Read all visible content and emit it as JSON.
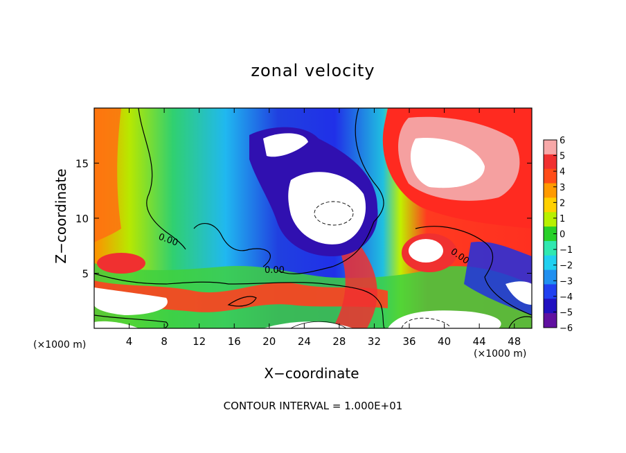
{
  "chart_data": {
    "type": "heatmap",
    "title": "zonal velocity",
    "xlabel": "X−coordinate",
    "ylabel": "Z−coordinate",
    "x_unit_label": "(×1000 m)",
    "footer": "CONTOUR INTERVAL = 1.000E+01",
    "xlim": [
      0,
      50
    ],
    "ylim": [
      0,
      20
    ],
    "x_ticks": [
      4,
      8,
      12,
      16,
      20,
      24,
      28,
      32,
      36,
      40,
      44,
      48
    ],
    "y_ticks": [
      5,
      10,
      15
    ],
    "colorbar": {
      "min": -6,
      "max": 6,
      "ticks": [
        6,
        5,
        4,
        3,
        2,
        1,
        0,
        -1,
        -2,
        -3,
        -4,
        -5,
        -6
      ],
      "colors": [
        "#f7a8a8",
        "#f03030",
        "#ff4c18",
        "#ff9a00",
        "#ffd000",
        "#b8f000",
        "#28d028",
        "#30e8b0",
        "#20d0f0",
        "#2090f0",
        "#2040f0",
        "#2010c0",
        "#6010a0"
      ]
    },
    "contour_labels": [
      "0.00",
      "0.00",
      "0.00"
    ]
  }
}
